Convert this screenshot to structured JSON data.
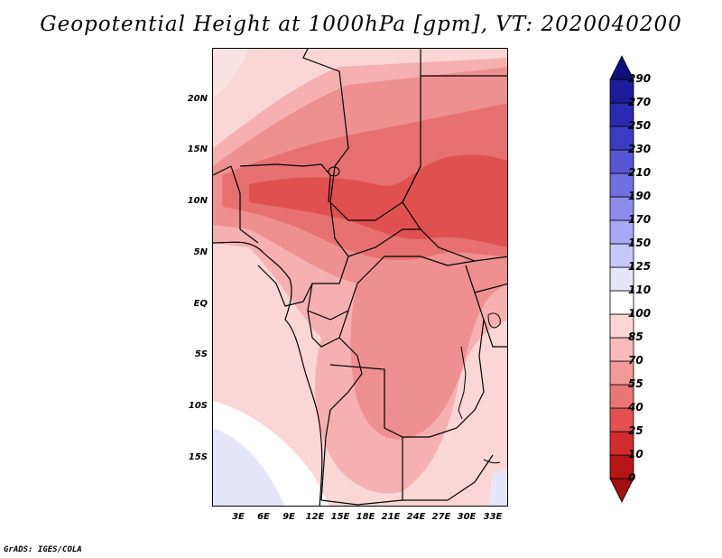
{
  "title": "Geopotential Height at 1000hPa [gpm], VT: 2020040200",
  "footer": "GrADS: IGES/COLA",
  "map": {
    "region": "Central Africa",
    "variable": "Geopotential Height",
    "level": "1000hPa",
    "units": "gpm",
    "valid_time": "2020040200",
    "lat_labels": [
      "20N",
      "15N",
      "10N",
      "5N",
      "EQ",
      "5S",
      "10S",
      "15S"
    ],
    "lon_labels": [
      "3E",
      "6E",
      "9E",
      "12E",
      "15E",
      "18E",
      "21E",
      "24E",
      "27E",
      "30E",
      "33E"
    ]
  },
  "colorbar": {
    "levels": [
      "0",
      "10",
      "25",
      "40",
      "55",
      "70",
      "85",
      "100",
      "110",
      "125",
      "150",
      "170",
      "190",
      "210",
      "230",
      "250",
      "270",
      "290"
    ],
    "colors": [
      "#a01010",
      "#b81616",
      "#d42c2c",
      "#e25050",
      "#ea7676",
      "#f29a9a",
      "#f8baba",
      "#fbd6d6",
      "#ffffff",
      "#e6e6fa",
      "#c8c8f8",
      "#a8a8f4",
      "#8c8cec",
      "#7070e0",
      "#5656d2",
      "#3c3cc2",
      "#2a2ab0",
      "#1c1c98",
      "#10107c"
    ]
  }
}
